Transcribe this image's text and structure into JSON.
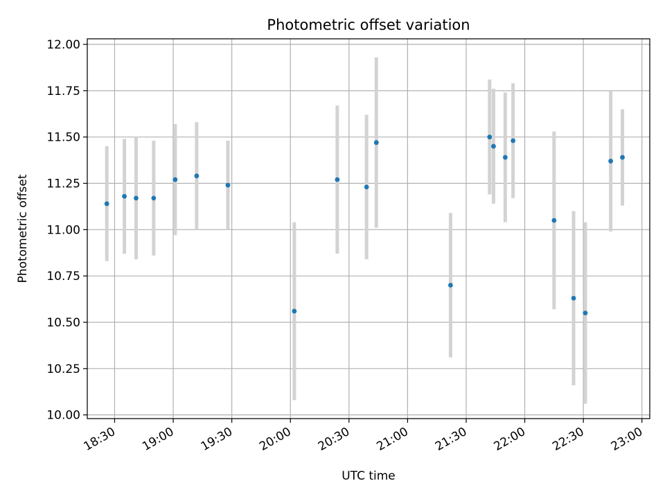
{
  "chart_data": {
    "type": "scatter",
    "title": "Photometric offset variation",
    "xlabel": "UTC time",
    "ylabel": "Photometric offset",
    "x_unit": "UTC time (HH:MM)",
    "xlim": [
      "18:16",
      "23:04"
    ],
    "ylim": [
      9.98,
      12.03
    ],
    "x_ticks": [
      "18:30",
      "19:00",
      "19:30",
      "20:00",
      "20:30",
      "21:00",
      "21:30",
      "22:00",
      "22:30",
      "23:00"
    ],
    "y_ticks": [
      "10.00",
      "10.25",
      "10.50",
      "10.75",
      "11.00",
      "11.25",
      "11.50",
      "11.75",
      "12.00"
    ],
    "grid": true,
    "point_color": "#1f77b4",
    "errorbar_color": "#d3d3d3",
    "points": [
      {
        "x": "18:26",
        "y": 11.14,
        "err": 0.31
      },
      {
        "x": "18:35",
        "y": 11.18,
        "err": 0.31
      },
      {
        "x": "18:41",
        "y": 11.17,
        "err": 0.33
      },
      {
        "x": "18:50",
        "y": 11.17,
        "err": 0.31
      },
      {
        "x": "19:01",
        "y": 11.27,
        "err": 0.3
      },
      {
        "x": "19:12",
        "y": 11.29,
        "err": 0.29
      },
      {
        "x": "19:28",
        "y": 11.24,
        "err": 0.24
      },
      {
        "x": "20:02",
        "y": 10.56,
        "err": 0.48
      },
      {
        "x": "20:24",
        "y": 11.27,
        "err": 0.4
      },
      {
        "x": "20:39",
        "y": 11.23,
        "err": 0.39
      },
      {
        "x": "20:44",
        "y": 11.47,
        "err": 0.46
      },
      {
        "x": "21:22",
        "y": 10.7,
        "err": 0.39
      },
      {
        "x": "21:42",
        "y": 11.5,
        "err": 0.31
      },
      {
        "x": "21:44",
        "y": 11.45,
        "err": 0.31
      },
      {
        "x": "21:50",
        "y": 11.39,
        "err": 0.35
      },
      {
        "x": "21:54",
        "y": 11.48,
        "err": 0.31
      },
      {
        "x": "22:15",
        "y": 11.05,
        "err": 0.48
      },
      {
        "x": "22:25",
        "y": 10.63,
        "err": 0.47
      },
      {
        "x": "22:31",
        "y": 10.55,
        "err": 0.49
      },
      {
        "x": "22:44",
        "y": 11.37,
        "err": 0.38
      },
      {
        "x": "22:50",
        "y": 11.39,
        "err": 0.26
      }
    ]
  }
}
